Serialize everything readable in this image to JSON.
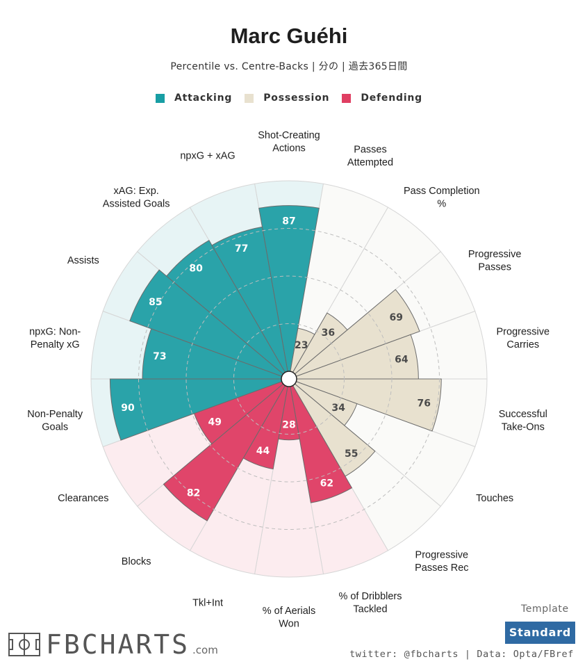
{
  "title": "Marc Guéhi",
  "subtitle": "Percentile vs. Centre-Backs | 分の | 過去365日間",
  "legend": [
    {
      "label": "Attacking",
      "color": "#189ea4"
    },
    {
      "label": "Possession",
      "color": "#e8e1cf"
    },
    {
      "label": "Defending",
      "color": "#e03e62"
    }
  ],
  "chart_data": {
    "type": "polar_bar",
    "range": [
      0,
      100
    ],
    "categories": [
      {
        "label": "Shot-Creating Actions",
        "value": 87,
        "group": "Attacking"
      },
      {
        "label": "Passes Attempted",
        "value": 23,
        "group": "Possession"
      },
      {
        "label": "Pass Completion %",
        "value": 36,
        "group": "Possession"
      },
      {
        "label": "Progressive Passes",
        "value": 69,
        "group": "Possession"
      },
      {
        "label": "Progressive Carries",
        "value": 64,
        "group": "Possession"
      },
      {
        "label": "Successful Take-Ons",
        "value": 76,
        "group": "Possession"
      },
      {
        "label": "Touches",
        "value": 34,
        "group": "Possession"
      },
      {
        "label": "Progressive Passes Rec",
        "value": 55,
        "group": "Possession"
      },
      {
        "label": "% of Dribblers Tackled",
        "value": 62,
        "group": "Defending"
      },
      {
        "label": "% of Aerials Won",
        "value": 28,
        "group": "Defending"
      },
      {
        "label": "Tkl+Int",
        "value": 44,
        "group": "Defending"
      },
      {
        "label": "Blocks",
        "value": 82,
        "group": "Defending"
      },
      {
        "label": "Clearances",
        "value": 49,
        "group": "Defending"
      },
      {
        "label": "Non-Penalty Goals",
        "value": 90,
        "group": "Attacking"
      },
      {
        "label": "npxG: Non-Penalty xG",
        "value": 73,
        "group": "Attacking"
      },
      {
        "label": "Assists",
        "value": 85,
        "group": "Attacking"
      },
      {
        "label": "xAG: Exp. Assisted Goals",
        "value": 80,
        "group": "Attacking"
      },
      {
        "label": "npxG + xAG",
        "value": 77,
        "group": "Attacking"
      }
    ],
    "colors": {
      "Attacking": {
        "fill": "#2aa3a9",
        "bg": "#e7f4f5",
        "text": "#ffffff"
      },
      "Possession": {
        "fill": "#e8e1cf",
        "bg": "#fafaf8",
        "text": "#4a4a4a"
      },
      "Defending": {
        "fill": "#e0456a",
        "bg": "#fcecef",
        "text": "#ffffff"
      }
    }
  },
  "footer": {
    "logo": "FBCHARTS",
    "logo_suffix": ".com",
    "template_label": "Template",
    "template_value": "Standard",
    "credit": "twitter: @fbcharts | Data: Opta/FBref"
  }
}
